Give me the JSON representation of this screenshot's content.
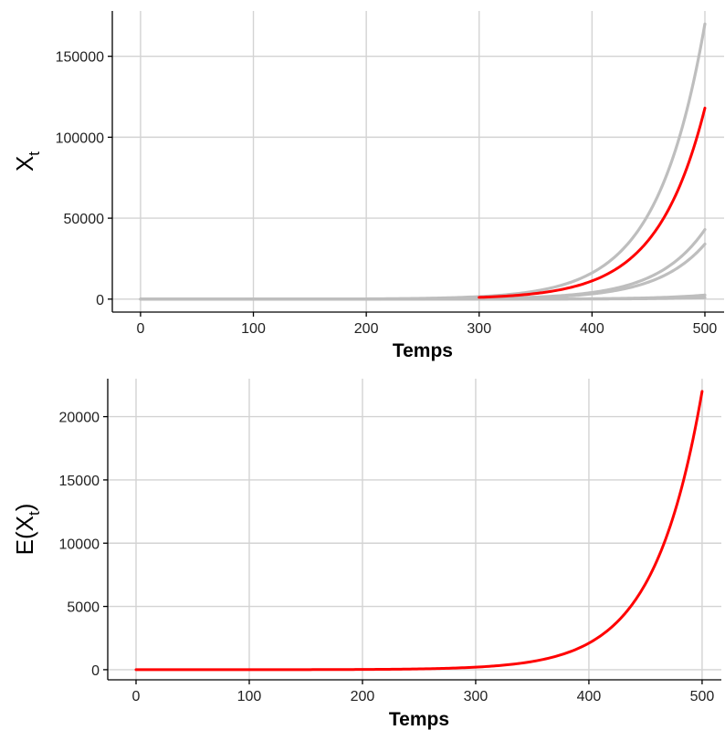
{
  "chart_data": [
    {
      "type": "line",
      "xlabel": "Temps",
      "ylabel_base": "X",
      "ylabel_sub": "t",
      "xlim": [
        -25,
        517
      ],
      "ylim": [
        -8000,
        178000
      ],
      "x_ticks": [
        "0",
        "100",
        "200",
        "300",
        "400",
        "500"
      ],
      "x_tick_values": [
        0,
        100,
        200,
        300,
        400,
        500
      ],
      "y_ticks": [
        "0",
        "50000",
        "100000",
        "150000"
      ],
      "y_tick_values": [
        0,
        50000,
        100000,
        150000
      ],
      "grid": true,
      "series": [
        {
          "color": "#bebebe",
          "start": 0,
          "end": 500,
          "final": 170000
        },
        {
          "color": "#bebebe",
          "start": 0,
          "end": 500,
          "final": 43000
        },
        {
          "color": "#bebebe",
          "start": 0,
          "end": 500,
          "final": 34000
        },
        {
          "color": "#bebebe",
          "start": 0,
          "end": 500,
          "final": 2500
        },
        {
          "color": "#bebebe",
          "start": 0,
          "end": 500,
          "final": 900
        },
        {
          "color": "#ff0000",
          "start": 300,
          "end": 500,
          "final": 118000
        }
      ]
    },
    {
      "type": "line",
      "xlabel": "Temps",
      "ylabel_base": "E(X",
      "ylabel_sub": "t",
      "ylabel_close": ")",
      "xlim": [
        -25,
        517
      ],
      "ylim": [
        -800,
        23000
      ],
      "x_ticks": [
        "0",
        "100",
        "200",
        "300",
        "400",
        "500"
      ],
      "x_tick_values": [
        0,
        100,
        200,
        300,
        400,
        500
      ],
      "y_ticks": [
        "0",
        "5000",
        "10000",
        "15000",
        "20000"
      ],
      "y_tick_values": [
        0,
        5000,
        10000,
        15000,
        20000
      ],
      "grid": true,
      "series": [
        {
          "color": "#ff0000",
          "start": 0,
          "end": 500,
          "final": 22000
        }
      ]
    }
  ]
}
